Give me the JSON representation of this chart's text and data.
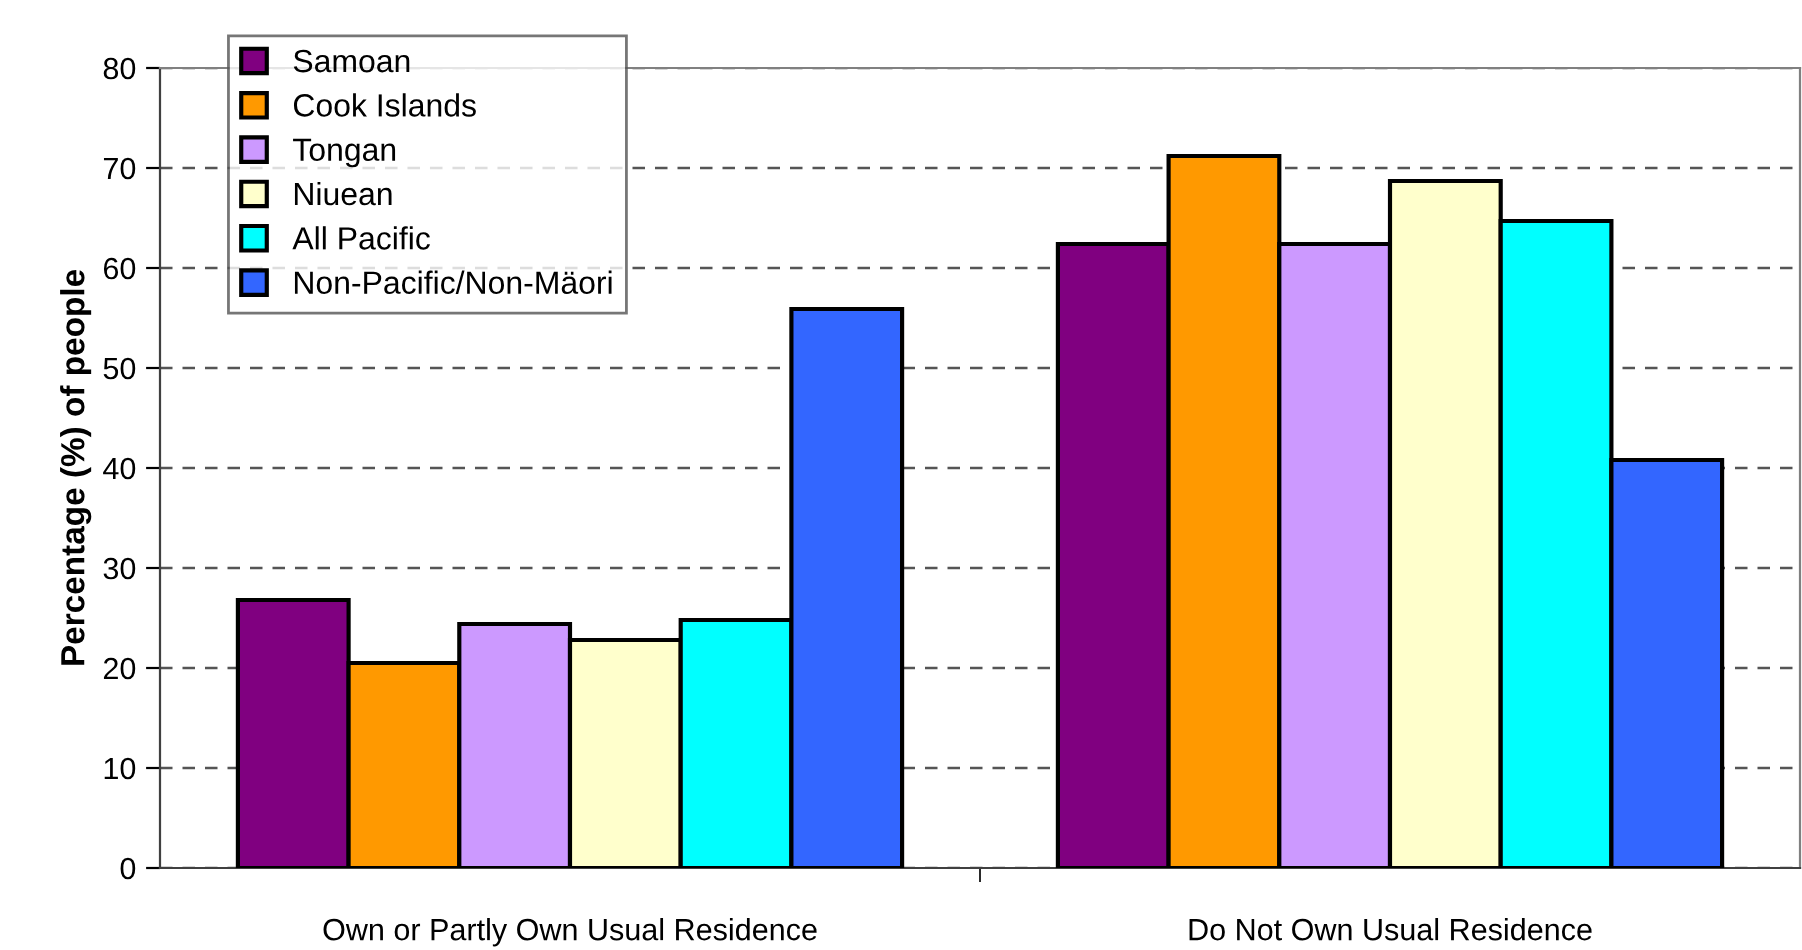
{
  "chart_data": {
    "type": "bar",
    "ylabel": "Percentage (%) of people",
    "categories": [
      "Own or Partly Own Usual Residence",
      "Do Not Own Usual Residence"
    ],
    "series": [
      {
        "name": "Samoan",
        "color": "#800080",
        "values": [
          26.8,
          62.4
        ]
      },
      {
        "name": "Cook Islands",
        "color": "#ff9900",
        "values": [
          20.5,
          71.2
        ]
      },
      {
        "name": "Tongan",
        "color": "#cc99ff",
        "values": [
          24.4,
          62.4
        ]
      },
      {
        "name": "Niuean",
        "color": "#ffffcc",
        "values": [
          22.8,
          68.7
        ]
      },
      {
        "name": "All Pacific",
        "color": "#00ffff",
        "values": [
          24.8,
          64.7
        ]
      },
      {
        "name": "Non-Pacific/Non-Mäori",
        "color": "#3366ff",
        "values": [
          55.9,
          40.8
        ]
      }
    ],
    "ylim": [
      0,
      80
    ],
    "yticks": [
      0,
      10,
      20,
      30,
      40,
      50,
      60,
      70,
      80
    ],
    "grid": "y",
    "legend": "top left"
  }
}
